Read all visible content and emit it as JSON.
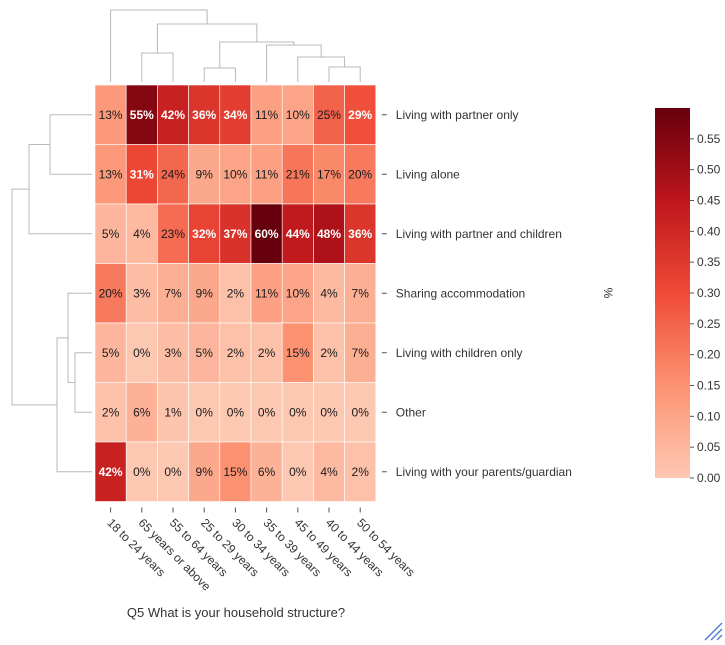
{
  "chart_data": {
    "type": "heatmap",
    "xlabel": "Q5 What is your household structure?",
    "colorbar_label": "%",
    "columns": [
      "18 to 24 years",
      "65 years or above",
      "55 to 64 years",
      "25 to 29 years",
      "30 to 34 years",
      "35 to 39 years",
      "45 to 49 years",
      "40 to 44 years",
      "50 to 54 years"
    ],
    "rows": [
      "Living with partner only",
      "Living alone",
      "Living with partner and children",
      "Sharing accommodation",
      "Living with children only",
      "Other",
      "Living with your parents/guardian"
    ],
    "values": [
      [
        0.13,
        0.55,
        0.42,
        0.36,
        0.34,
        0.11,
        0.1,
        0.25,
        0.29
      ],
      [
        0.13,
        0.31,
        0.24,
        0.09,
        0.1,
        0.11,
        0.21,
        0.17,
        0.2
      ],
      [
        0.05,
        0.04,
        0.23,
        0.32,
        0.37,
        0.6,
        0.44,
        0.48,
        0.36
      ],
      [
        0.2,
        0.03,
        0.07,
        0.09,
        0.02,
        0.11,
        0.1,
        0.04,
        0.07
      ],
      [
        0.05,
        0.0,
        0.03,
        0.05,
        0.02,
        0.02,
        0.15,
        0.02,
        0.07
      ],
      [
        0.02,
        0.06,
        0.01,
        0.0,
        0.0,
        0.0,
        0.0,
        0.0,
        0.0
      ],
      [
        0.42,
        0.0,
        0.0,
        0.09,
        0.15,
        0.06,
        0.0,
        0.04,
        0.02
      ]
    ],
    "labels": [
      [
        "13%",
        "55%",
        "42%",
        "36%",
        "34%",
        "11%",
        "10%",
        "25%",
        "29%"
      ],
      [
        "13%",
        "31%",
        "24%",
        "9%",
        "10%",
        "11%",
        "21%",
        "17%",
        "20%"
      ],
      [
        "5%",
        "4%",
        "23%",
        "32%",
        "37%",
        "60%",
        "44%",
        "48%",
        "36%"
      ],
      [
        "20%",
        "3%",
        "7%",
        "9%",
        "2%",
        "11%",
        "10%",
        "4%",
        "7%"
      ],
      [
        "5%",
        "0%",
        "3%",
        "5%",
        "2%",
        "2%",
        "15%",
        "2%",
        "7%"
      ],
      [
        "2%",
        "6%",
        "1%",
        "0%",
        "0%",
        "0%",
        "0%",
        "0%",
        "0%"
      ],
      [
        "42%",
        "0%",
        "0%",
        "9%",
        "15%",
        "6%",
        "0%",
        "4%",
        "2%"
      ]
    ],
    "colorbar_ticks": [
      "0.00",
      "0.05",
      "0.10",
      "0.15",
      "0.20",
      "0.25",
      "0.30",
      "0.35",
      "0.40",
      "0.45",
      "0.50",
      "0.55"
    ],
    "color_range": [
      0.0,
      0.6
    ],
    "colormap": "Reds",
    "colors": {
      "low": "#fdc8b1",
      "mid": "#e84a33",
      "high": "#67000d"
    }
  }
}
